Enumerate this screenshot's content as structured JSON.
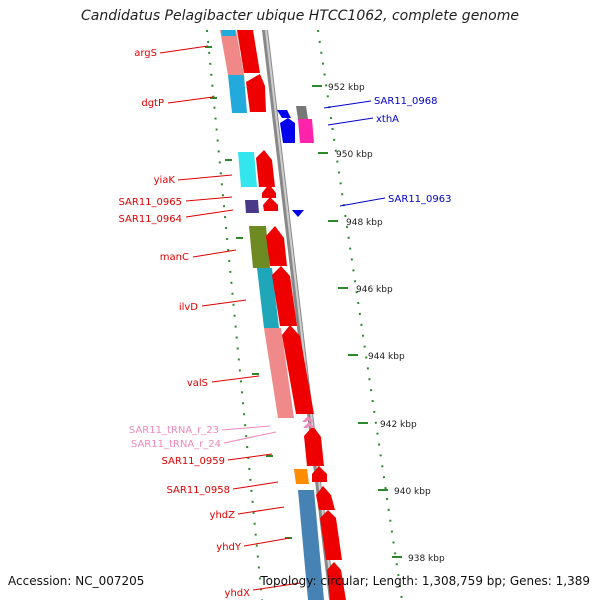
{
  "title": "Candidatus Pelagibacter ubique HTCC1062, complete genome",
  "footer": {
    "accession": "Accession: NC_007205",
    "summary": "Topology: circular; Length: 1,308,759 bp; Genes: 1,389"
  },
  "ticks": [
    "952 kbp",
    "950 kbp",
    "948 kbp",
    "946 kbp",
    "944 kbp",
    "942 kbp",
    "940 kbp",
    "938 kbp"
  ],
  "genes_left": [
    {
      "label": "argS",
      "color": "#dd0000"
    },
    {
      "label": "dgtP",
      "color": "#dd0000"
    },
    {
      "label": "yiaK",
      "color": "#dd0000"
    },
    {
      "label": "SAR11_0965",
      "color": "#dd0000"
    },
    {
      "label": "SAR11_0964",
      "color": "#dd0000"
    },
    {
      "label": "manC",
      "color": "#dd0000"
    },
    {
      "label": "ilvD",
      "color": "#dd0000"
    },
    {
      "label": "valS",
      "color": "#dd0000"
    },
    {
      "label": "SAR11_tRNA_r_23",
      "color": "#ee88bb"
    },
    {
      "label": "SAR11_tRNA_r_24",
      "color": "#ee88bb"
    },
    {
      "label": "SAR11_0959",
      "color": "#dd0000"
    },
    {
      "label": "SAR11_0958",
      "color": "#dd0000"
    },
    {
      "label": "yhdZ",
      "color": "#dd0000"
    },
    {
      "label": "yhdY",
      "color": "#dd0000"
    },
    {
      "label": "yhdX",
      "color": "#dd0000"
    }
  ],
  "genes_right": [
    {
      "label": "SAR11_0968",
      "color": "#0000cc"
    },
    {
      "label": "xthA",
      "color": "#0000cc"
    },
    {
      "label": "SAR11_0963",
      "color": "#0000cc"
    }
  ]
}
